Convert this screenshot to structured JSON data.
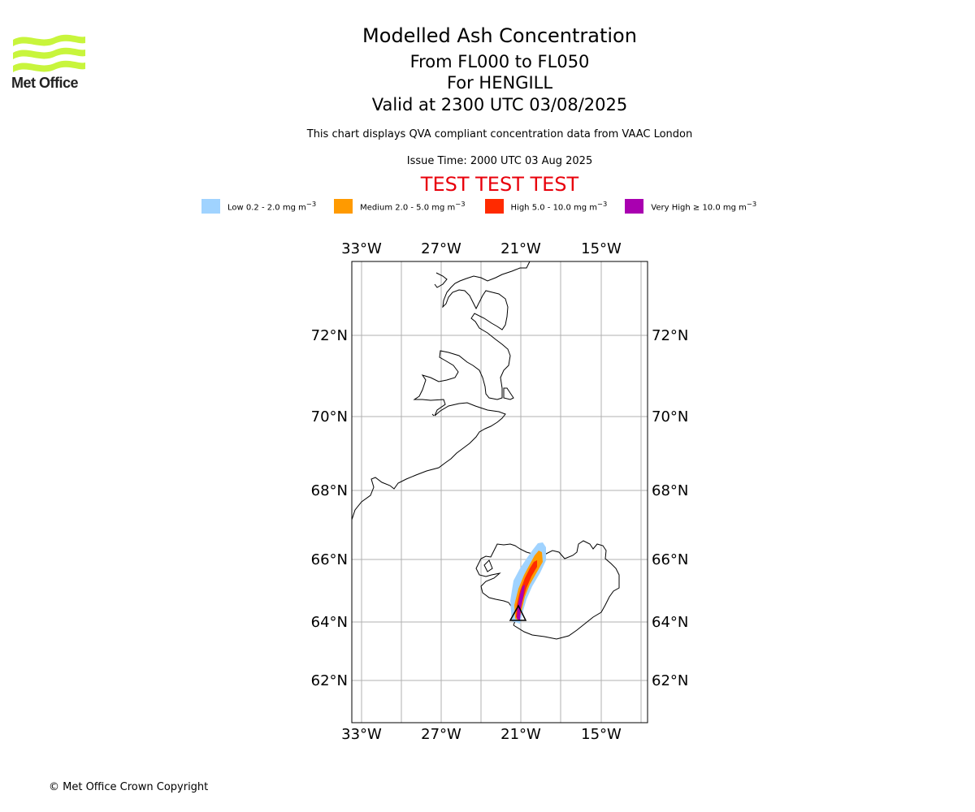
{
  "header": {
    "title": "Modelled Ash Concentration",
    "levels": "From FL000 to FL050",
    "volcano": "For HENGILL",
    "valid": "Valid at 2300 UTC 03/08/2025",
    "description": "This chart displays QVA compliant concentration data from VAAC London",
    "issue_time": "Issue Time: 2000 UTC 03 Aug 2025",
    "banner": "TEST TEST TEST"
  },
  "logo": {
    "text": "Met Office",
    "color": "#c8f53c"
  },
  "legend": [
    {
      "label_prefix": "Low 0.2 - 2.0 mg m",
      "color": "#a0d3ff"
    },
    {
      "label_prefix": "Medium 2.0 - 5.0 mg m",
      "color": "#ff9a00"
    },
    {
      "label_prefix": "High 5.0 - 10.0 mg m",
      "color": "#ff2a00"
    },
    {
      "label_prefix": "Very High ≥ 10.0 mg m",
      "color": "#a900b0"
    }
  ],
  "legend_unit_exponent": "−3",
  "map": {
    "lon_labels": [
      "33°W",
      "27°W",
      "21°W",
      "15°W"
    ],
    "lat_labels": [
      "72°N",
      "70°N",
      "68°N",
      "66°N",
      "64°N",
      "62°N"
    ],
    "gridline_color": "#b0b0b0",
    "volcano_marker": "triangle"
  },
  "footer": {
    "copyright": "© Met Office Crown Copyright"
  }
}
